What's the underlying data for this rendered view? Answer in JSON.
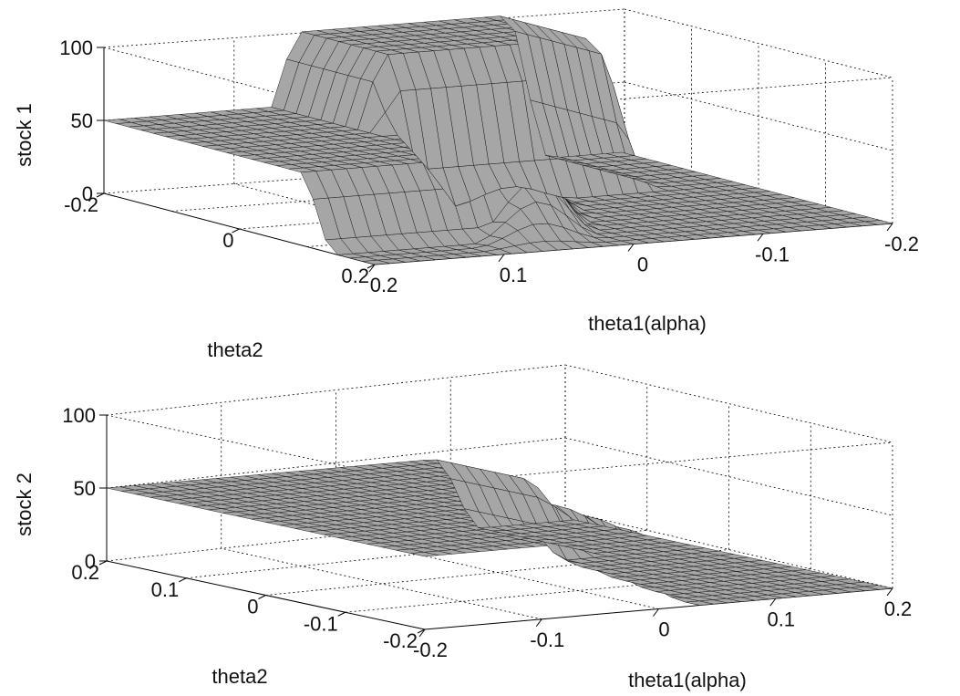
{
  "chart_data": [
    {
      "type": "surface",
      "zlabel": "stock 1",
      "xlabel": "theta1(alpha)",
      "ylabel": "theta2",
      "xlim": [
        -0.2,
        0.2
      ],
      "ylim": [
        -0.2,
        0.2
      ],
      "zlim": [
        0,
        100
      ],
      "xticks": [
        "0.2",
        "0.1",
        "0",
        "-0.1",
        "-0.2"
      ],
      "yticks": [
        "-0.2",
        "0",
        "0.2"
      ],
      "zticks": [
        "0",
        "50",
        "100"
      ],
      "grid": true,
      "surface_levels": {
        "left_plateau": 50,
        "upper_plateau": 100,
        "front_floor": 0,
        "right_floor": 0,
        "diagonal_ramp_peak": 50
      }
    },
    {
      "type": "surface",
      "zlabel": "stock 2",
      "xlabel": "theta1(alpha)",
      "ylabel": "theta2",
      "xlim": [
        -0.2,
        0.2
      ],
      "ylim": [
        -0.2,
        0.2
      ],
      "zlim": [
        0,
        100
      ],
      "xticks": [
        "-0.2",
        "-0.1",
        "0",
        "0.1",
        "0.2"
      ],
      "yticks": [
        "0.2",
        "0.1",
        "0",
        "-0.1",
        "-0.2"
      ],
      "zticks": [
        "0",
        "50",
        "100"
      ],
      "grid": true,
      "surface_levels": {
        "main_plateau": 50,
        "right_floor": 0,
        "right_back_plateau": 50
      }
    }
  ]
}
